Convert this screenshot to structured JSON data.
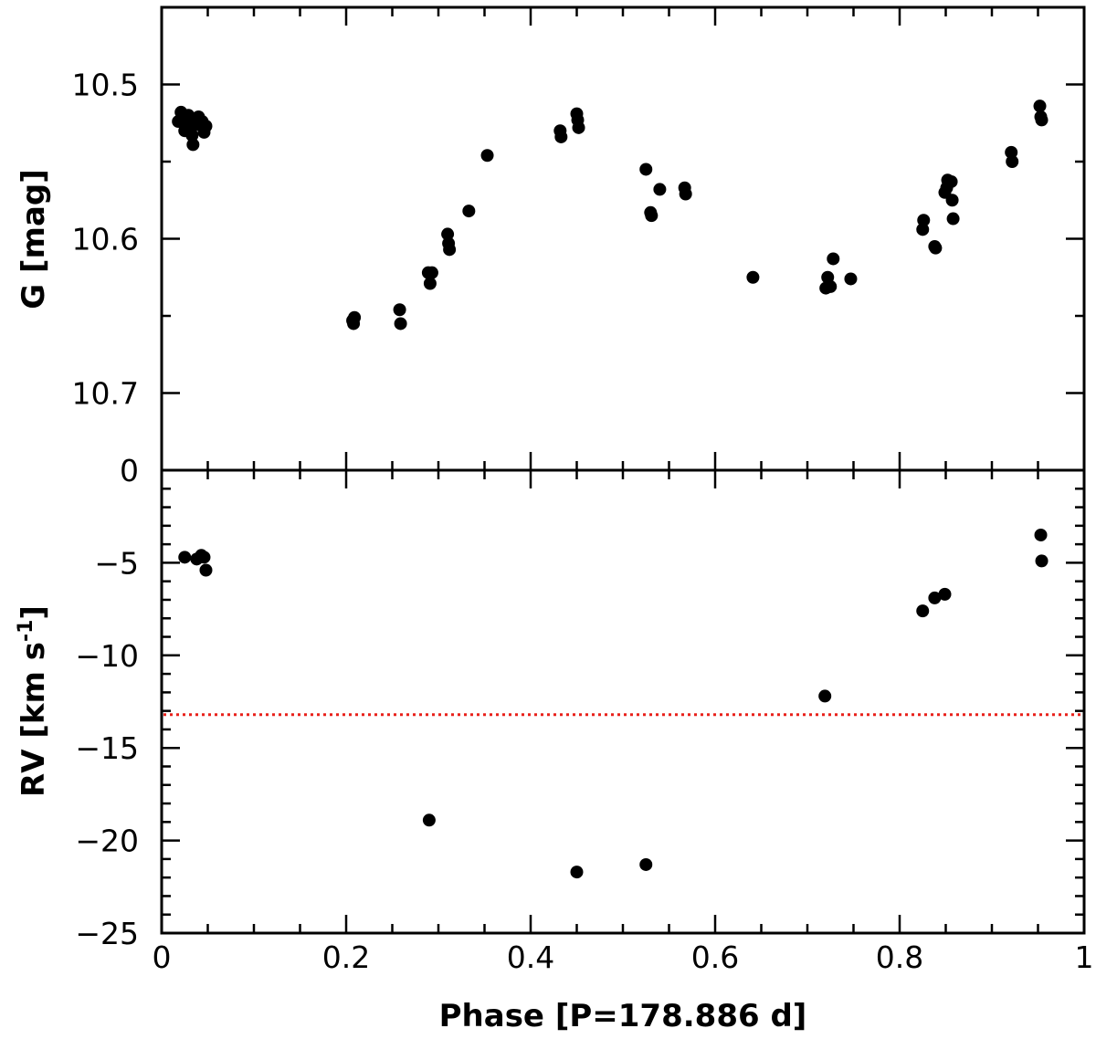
{
  "chart_data": [
    {
      "type": "scatter",
      "panel": "top",
      "ylabel": "G [mag]",
      "xlim": [
        0,
        1
      ],
      "ylim": [
        10.75,
        10.45
      ],
      "y_inverted": true,
      "yticks": [
        "10.5",
        "10.6",
        "10.7",
        "0"
      ],
      "marker_color": "#000000",
      "points": [
        {
          "x": 0.018,
          "y": 10.524
        },
        {
          "x": 0.021,
          "y": 10.518
        },
        {
          "x": 0.024,
          "y": 10.521
        },
        {
          "x": 0.025,
          "y": 10.53
        },
        {
          "x": 0.027,
          "y": 10.526
        },
        {
          "x": 0.029,
          "y": 10.52
        },
        {
          "x": 0.031,
          "y": 10.528
        },
        {
          "x": 0.033,
          "y": 10.533
        },
        {
          "x": 0.034,
          "y": 10.539
        },
        {
          "x": 0.036,
          "y": 10.523
        },
        {
          "x": 0.038,
          "y": 10.526
        },
        {
          "x": 0.04,
          "y": 10.521
        },
        {
          "x": 0.042,
          "y": 10.525
        },
        {
          "x": 0.044,
          "y": 10.524
        },
        {
          "x": 0.046,
          "y": 10.531
        },
        {
          "x": 0.048,
          "y": 10.527
        },
        {
          "x": 0.207,
          "y": 10.653
        },
        {
          "x": 0.208,
          "y": 10.655
        },
        {
          "x": 0.209,
          "y": 10.651
        },
        {
          "x": 0.258,
          "y": 10.646
        },
        {
          "x": 0.259,
          "y": 10.655
        },
        {
          "x": 0.289,
          "y": 10.622
        },
        {
          "x": 0.291,
          "y": 10.629
        },
        {
          "x": 0.293,
          "y": 10.622
        },
        {
          "x": 0.31,
          "y": 10.597
        },
        {
          "x": 0.311,
          "y": 10.603
        },
        {
          "x": 0.312,
          "y": 10.607
        },
        {
          "x": 0.333,
          "y": 10.582
        },
        {
          "x": 0.353,
          "y": 10.546
        },
        {
          "x": 0.432,
          "y": 10.53
        },
        {
          "x": 0.433,
          "y": 10.534
        },
        {
          "x": 0.45,
          "y": 10.519
        },
        {
          "x": 0.451,
          "y": 10.523
        },
        {
          "x": 0.452,
          "y": 10.528
        },
        {
          "x": 0.525,
          "y": 10.555
        },
        {
          "x": 0.53,
          "y": 10.583
        },
        {
          "x": 0.531,
          "y": 10.585
        },
        {
          "x": 0.54,
          "y": 10.568
        },
        {
          "x": 0.567,
          "y": 10.567
        },
        {
          "x": 0.568,
          "y": 10.571
        },
        {
          "x": 0.641,
          "y": 10.625
        },
        {
          "x": 0.72,
          "y": 10.632
        },
        {
          "x": 0.722,
          "y": 10.625
        },
        {
          "x": 0.725,
          "y": 10.631
        },
        {
          "x": 0.728,
          "y": 10.613
        },
        {
          "x": 0.747,
          "y": 10.626
        },
        {
          "x": 0.825,
          "y": 10.594
        },
        {
          "x": 0.826,
          "y": 10.588
        },
        {
          "x": 0.838,
          "y": 10.605
        },
        {
          "x": 0.839,
          "y": 10.606
        },
        {
          "x": 0.849,
          "y": 10.57
        },
        {
          "x": 0.851,
          "y": 10.567
        },
        {
          "x": 0.852,
          "y": 10.562
        },
        {
          "x": 0.856,
          "y": 10.563
        },
        {
          "x": 0.857,
          "y": 10.575
        },
        {
          "x": 0.858,
          "y": 10.587
        },
        {
          "x": 0.921,
          "y": 10.544
        },
        {
          "x": 0.922,
          "y": 10.55
        },
        {
          "x": 0.952,
          "y": 10.514
        },
        {
          "x": 0.953,
          "y": 10.521
        },
        {
          "x": 0.954,
          "y": 10.523
        }
      ]
    },
    {
      "type": "scatter",
      "panel": "bottom",
      "xlabel": "Phase [P=178.886 d]",
      "ylabel": "RV [km s",
      "ylabel_superscript": "-1",
      "ylabel_suffix": "]",
      "xlim": [
        0,
        1
      ],
      "ylim": [
        -25,
        0
      ],
      "xticks": [
        "0",
        "0.2",
        "0.4",
        "0.6",
        "0.8",
        "1"
      ],
      "yticks": [
        "-5",
        "-10",
        "-15",
        "-20",
        "-25"
      ],
      "marker_color": "#000000",
      "reference_line": {
        "y": -13.2,
        "color": "#e8201a",
        "style": "dotted"
      },
      "points": [
        {
          "x": 0.025,
          "y": -4.7
        },
        {
          "x": 0.038,
          "y": -4.8
        },
        {
          "x": 0.043,
          "y": -4.6
        },
        {
          "x": 0.046,
          "y": -4.7
        },
        {
          "x": 0.048,
          "y": -5.4
        },
        {
          "x": 0.29,
          "y": -18.9
        },
        {
          "x": 0.45,
          "y": -21.7
        },
        {
          "x": 0.525,
          "y": -21.3
        },
        {
          "x": 0.719,
          "y": -12.2
        },
        {
          "x": 0.825,
          "y": -7.6
        },
        {
          "x": 0.838,
          "y": -6.9
        },
        {
          "x": 0.849,
          "y": -6.7
        },
        {
          "x": 0.953,
          "y": -3.5
        },
        {
          "x": 0.954,
          "y": -4.9
        }
      ]
    }
  ]
}
